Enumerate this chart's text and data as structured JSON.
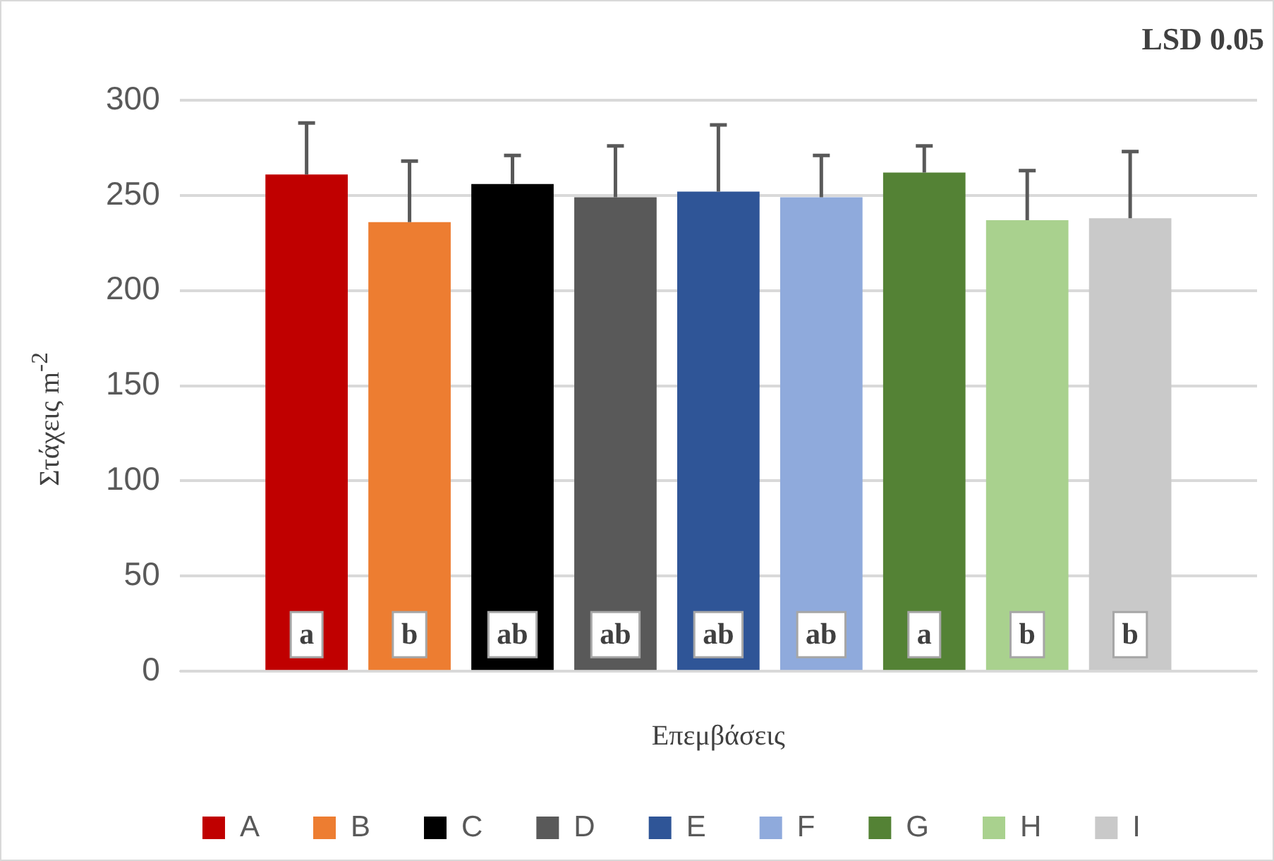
{
  "chart_data": {
    "type": "bar",
    "xlabel": "Επεμβάσεις",
    "ylabel": "Στάχεις m$^{-2}$",
    "annotations": [
      "LSD 0.05"
    ],
    "categories": [
      null
    ],
    "ylim": [
      0,
      300
    ],
    "yticks": [
      0,
      50,
      100,
      150,
      200,
      250,
      300
    ],
    "grid": "y",
    "legend": "bottom",
    "series": [
      {
        "name": "A",
        "color": "#c00000",
        "values": [
          261
        ],
        "errors": [
          [
            261,
            288
          ]
        ],
        "value_labels": [
          "a"
        ]
      },
      {
        "name": "B",
        "color": "#ed7d31",
        "values": [
          236
        ],
        "errors": [
          [
            236,
            268
          ]
        ],
        "value_labels": [
          "b"
        ]
      },
      {
        "name": "C",
        "color": "#000000",
        "values": [
          256
        ],
        "errors": [
          [
            256,
            271
          ]
        ],
        "value_labels": [
          "ab"
        ]
      },
      {
        "name": "D",
        "color": "#595959",
        "values": [
          249
        ],
        "errors": [
          [
            249,
            276
          ]
        ],
        "value_labels": [
          "ab"
        ]
      },
      {
        "name": "E",
        "color": "#2f5597",
        "values": [
          252
        ],
        "errors": [
          [
            252,
            287
          ]
        ],
        "value_labels": [
          "ab"
        ]
      },
      {
        "name": "F",
        "color": "#8faadc",
        "values": [
          249
        ],
        "errors": [
          [
            249,
            271
          ]
        ],
        "value_labels": [
          "ab"
        ]
      },
      {
        "name": "G",
        "color": "#548235",
        "values": [
          262
        ],
        "errors": [
          [
            262,
            276
          ]
        ],
        "value_labels": [
          "a"
        ]
      },
      {
        "name": "H",
        "color": "#a9d18e",
        "values": [
          237
        ],
        "errors": [
          [
            237,
            263
          ]
        ],
        "value_labels": [
          "b"
        ]
      },
      {
        "name": "I",
        "color": "#c9c9c9",
        "values": [
          238
        ],
        "errors": [
          [
            238,
            273
          ]
        ],
        "value_labels": [
          "b"
        ]
      }
    ]
  }
}
